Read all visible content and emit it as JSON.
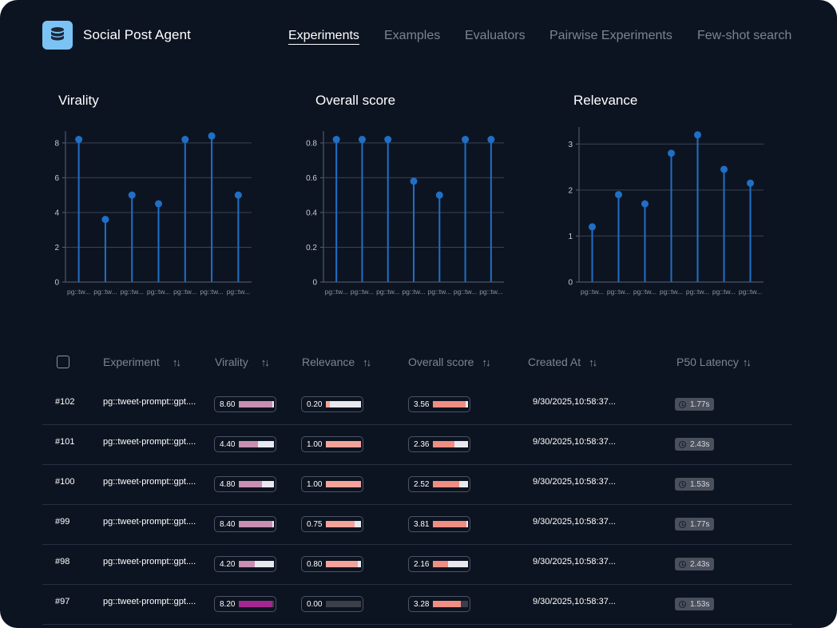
{
  "app": {
    "title": "Social Post Agent",
    "icon": "database-icon"
  },
  "nav": {
    "items": [
      {
        "label": "Experiments",
        "active": true
      },
      {
        "label": "Examples",
        "active": false
      },
      {
        "label": "Evaluators",
        "active": false
      },
      {
        "label": "Pairwise Experiments",
        "active": false
      },
      {
        "label": "Few-shot search",
        "active": false
      }
    ]
  },
  "colors": {
    "background": "#0d1421",
    "accent": "#1f6fc6",
    "virality_fill": "#c98fb2",
    "virality_fill_strong": "#a4278f",
    "relevance_fill": "#f5a39a",
    "score_fill": "#f08e83"
  },
  "chart_data": [
    {
      "type": "scatter",
      "style": "lollipop",
      "title": "Virality",
      "categories": [
        "pg::tw...",
        "pg::tw...",
        "pg::tw...",
        "pg::tw...",
        "pg::tw...",
        "pg::tw...",
        "pg::tw..."
      ],
      "values": [
        8.2,
        3.6,
        5.0,
        4.5,
        8.2,
        8.4,
        5.0
      ],
      "yticks": [
        "0",
        "2",
        "4",
        "6",
        "8"
      ],
      "ylim": [
        0,
        8.5
      ],
      "grid": true
    },
    {
      "type": "scatter",
      "style": "lollipop",
      "title": "Overall score",
      "categories": [
        "pg::tw...",
        "pg::tw...",
        "pg::tw...",
        "pg::tw...",
        "pg::tw...",
        "pg::tw...",
        "pg::tw..."
      ],
      "values": [
        0.82,
        0.82,
        0.82,
        0.58,
        0.5,
        0.82,
        0.82
      ],
      "yticks": [
        "0",
        "0.2",
        "0.4",
        "0.6",
        "0.8"
      ],
      "ylim": [
        0,
        0.85
      ],
      "grid": true
    },
    {
      "type": "scatter",
      "style": "lollipop",
      "title": "Relevance",
      "categories": [
        "pg::tw...",
        "pg::tw...",
        "pg::tw...",
        "pg::tw...",
        "pg::tw...",
        "pg::tw...",
        "pg::tw..."
      ],
      "values": [
        1.2,
        1.9,
        1.7,
        2.8,
        3.2,
        2.45,
        2.15
      ],
      "yticks": [
        "0",
        "1",
        "2",
        "3"
      ],
      "ylim": [
        0,
        3.3
      ],
      "grid": true
    }
  ],
  "table": {
    "headers": [
      "Experiment",
      "Virality",
      "Relevance",
      "Overall score",
      "Created At",
      "P50 Latency"
    ],
    "rows": [
      {
        "id": "#102",
        "experiment": "pg::tweet-prompt::gpt....",
        "virality": "8.60",
        "virality_frac": 0.95,
        "relevance": "0.20",
        "relevance_frac": 0.12,
        "score": "3.56",
        "score_frac": 0.93,
        "created": "9/30/2025,10:58:37...",
        "latency": "1.77s"
      },
      {
        "id": "#101",
        "experiment": "pg::tweet-prompt::gpt....",
        "virality": "4.40",
        "virality_frac": 0.55,
        "relevance": "1.00",
        "relevance_frac": 1.0,
        "score": "2.36",
        "score_frac": 0.62,
        "created": "9/30/2025,10:58:37...",
        "latency": "2.43s"
      },
      {
        "id": "#100",
        "experiment": "pg::tweet-prompt::gpt....",
        "virality": "4.80",
        "virality_frac": 0.66,
        "relevance": "1.00",
        "relevance_frac": 1.0,
        "score": "2.52",
        "score_frac": 0.76,
        "created": "9/30/2025,10:58:37...",
        "latency": "1.53s"
      },
      {
        "id": "#99",
        "experiment": "pg::tweet-prompt::gpt....",
        "virality": "8.40",
        "virality_frac": 0.95,
        "relevance": "0.75",
        "relevance_frac": 0.82,
        "score": "3.81",
        "score_frac": 0.96,
        "created": "9/30/2025,10:58:37...",
        "latency": "1.77s"
      },
      {
        "id": "#98",
        "experiment": "pg::tweet-prompt::gpt....",
        "virality": "4.20",
        "virality_frac": 0.45,
        "relevance": "0.80",
        "relevance_frac": 0.9,
        "score": "2.16",
        "score_frac": 0.44,
        "created": "9/30/2025,10:58:37...",
        "latency": "2.43s"
      },
      {
        "id": "#97",
        "experiment": "pg::tweet-prompt::gpt....",
        "virality": "8.20",
        "virality_frac": 0.95,
        "relevance": "0.00",
        "relevance_frac": 0.0,
        "score": "3.28",
        "score_frac": 0.8,
        "created": "9/30/2025,10:58:37...",
        "latency": "1.53s"
      }
    ]
  }
}
